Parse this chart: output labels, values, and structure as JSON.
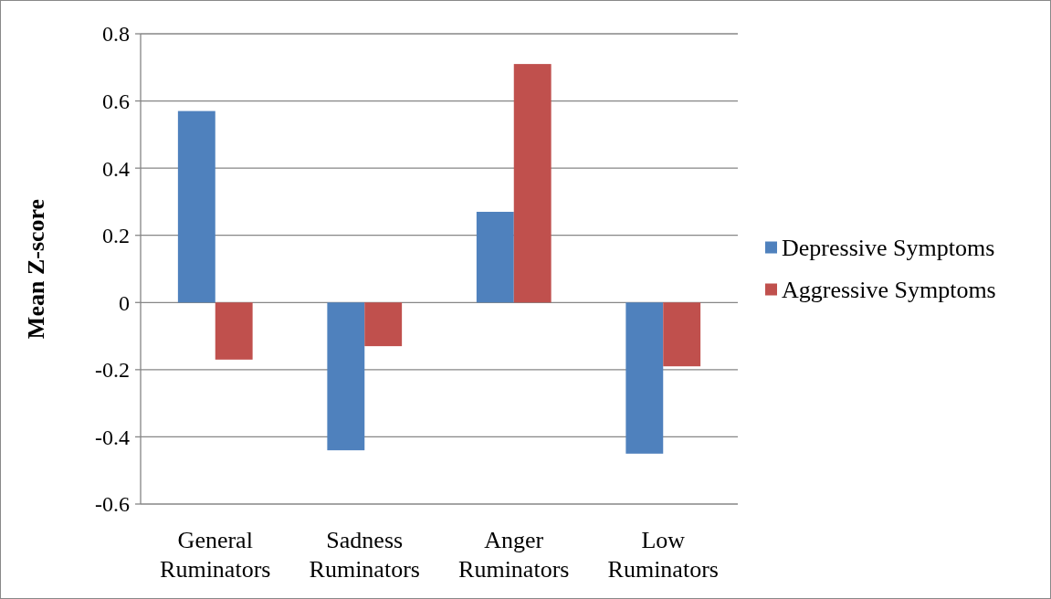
{
  "chart_data": {
    "type": "bar",
    "ylabel": "Mean Z-score",
    "categories": [
      "General Ruminators",
      "Sadness Ruminators",
      "Anger Ruminators",
      "Low Ruminators"
    ],
    "series": [
      {
        "name": "Depressive Symptoms",
        "color": "#4f81bd",
        "values": [
          0.57,
          -0.44,
          0.27,
          -0.45
        ]
      },
      {
        "name": "Aggressive Symptoms",
        "color": "#c0504d",
        "values": [
          -0.17,
          -0.13,
          0.71,
          -0.19
        ]
      }
    ],
    "ylim": [
      -0.6,
      0.8
    ],
    "yticks": [
      {
        "value": -0.6,
        "label": "-0.6"
      },
      {
        "value": -0.4,
        "label": "-0.4"
      },
      {
        "value": -0.2,
        "label": "-0.2"
      },
      0,
      {
        "value": 0.2,
        "label": "0.2"
      },
      {
        "value": 0.4,
        "label": "0.4"
      },
      {
        "value": 0.6,
        "label": "0.6"
      },
      {
        "value": 0.8,
        "label": "0.8"
      }
    ],
    "grid": "y",
    "legend": "right"
  }
}
